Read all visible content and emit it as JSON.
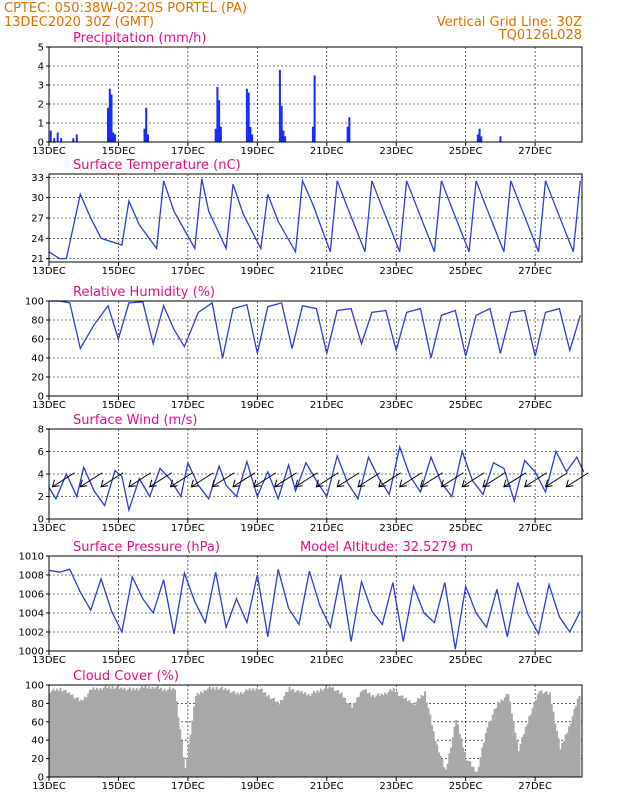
{
  "header": {
    "center_line": "CPTEC:   050:38W-02:20S   PORTEL (PA)",
    "run_line": "13DEC2020 30Z (GMT)",
    "grid_line": "Vertical Grid Line: 30Z",
    "code": "TQ0126L028"
  },
  "colors": {
    "header": "#e07000",
    "title": "#e0108a",
    "line": "#2a3fd8",
    "bar": "#1a2bff",
    "cloud": "#a8a8a8",
    "wind_arrow": "#000000"
  },
  "chart_data": [
    {
      "id": "precip",
      "type": "bar",
      "title": "Precipitation (mm/h)",
      "ylim": [
        0,
        5
      ],
      "yticks": [
        0,
        1,
        2,
        3,
        4,
        5
      ],
      "xlabels": [
        "13DEC",
        "15DEC",
        "17DEC",
        "19DEC",
        "21DEC",
        "23DEC",
        "25DEC",
        "27DEC"
      ],
      "xlabel_days": [
        0,
        2,
        4,
        6,
        8,
        10,
        12,
        14
      ],
      "x_unit": "days since 13DEC2020 30Z",
      "x": [
        0.05,
        0.15,
        0.25,
        0.35,
        0.7,
        0.8,
        1.7,
        1.75,
        1.8,
        1.85,
        1.9,
        2.75,
        2.8,
        2.85,
        4.8,
        4.85,
        4.9,
        4.95,
        5.7,
        5.75,
        5.8,
        5.85,
        6.65,
        6.7,
        6.75,
        6.8,
        7.6,
        7.65,
        8.6,
        8.65,
        12.35,
        12.4,
        12.45,
        13.0
      ],
      "values": [
        0.6,
        0.2,
        0.5,
        0.2,
        0.2,
        0.4,
        1.8,
        2.8,
        2.5,
        0.5,
        0.4,
        0.7,
        1.8,
        0.4,
        0.7,
        2.9,
        2.2,
        0.8,
        2.8,
        2.6,
        0.8,
        0.4,
        3.8,
        1.9,
        0.6,
        0.3,
        0.8,
        3.5,
        0.8,
        1.3,
        0.4,
        0.7,
        0.3,
        0.3
      ]
    },
    {
      "id": "temp",
      "type": "line",
      "title": "Surface Temperature (nC)",
      "ylim": [
        20.5,
        33.5
      ],
      "yticks": [
        21,
        24,
        27,
        30,
        33
      ],
      "xlabels": [
        "13DEC",
        "15DEC",
        "17DEC",
        "19DEC",
        "21DEC",
        "23DEC",
        "25DEC",
        "27DEC"
      ],
      "xlabel_days": [
        0,
        2,
        4,
        6,
        8,
        10,
        12,
        14
      ],
      "x": [
        0,
        0.3,
        0.5,
        0.9,
        1.2,
        1.5,
        2.1,
        2.3,
        2.6,
        3.1,
        3.3,
        3.6,
        4.2,
        4.4,
        4.6,
        5.1,
        5.3,
        5.6,
        6.1,
        6.3,
        6.6,
        7.1,
        7.3,
        7.6,
        8.1,
        8.3,
        8.6,
        9.1,
        9.3,
        9.6,
        10.1,
        10.3,
        10.6,
        11.1,
        11.3,
        11.6,
        12.1,
        12.3,
        12.6,
        13.1,
        13.3,
        13.6,
        14.1,
        14.3,
        14.6,
        15.1,
        15.3
      ],
      "values": [
        22,
        21,
        21,
        30.5,
        27,
        24,
        23,
        29.5,
        26,
        22.5,
        32.5,
        28,
        22.5,
        32.8,
        28,
        22.5,
        32,
        27.5,
        22.5,
        30.5,
        26.5,
        22,
        32.5,
        29,
        22,
        32.5,
        28.5,
        22,
        32.5,
        28.5,
        22,
        32.5,
        28.5,
        22,
        32.5,
        28.5,
        22,
        32.5,
        28.5,
        22,
        32.5,
        28.5,
        22,
        32.5,
        28.5,
        22,
        32.5
      ]
    },
    {
      "id": "rh",
      "type": "line",
      "title": "Relative Humidity (%)",
      "ylim": [
        0,
        100
      ],
      "yticks": [
        0,
        20,
        40,
        60,
        80,
        100
      ],
      "xlabels": [
        "13DEC",
        "15DEC",
        "17DEC",
        "19DEC",
        "21DEC",
        "23DEC",
        "25DEC",
        "27DEC"
      ],
      "xlabel_days": [
        0,
        2,
        4,
        6,
        8,
        10,
        12,
        14
      ],
      "x": [
        0,
        0.3,
        0.6,
        0.9,
        1.3,
        1.7,
        2.0,
        2.3,
        2.7,
        3.0,
        3.3,
        3.6,
        3.9,
        4.3,
        4.7,
        5.0,
        5.3,
        5.7,
        6.0,
        6.3,
        6.7,
        7.0,
        7.3,
        7.7,
        8.0,
        8.3,
        8.7,
        9.0,
        9.3,
        9.7,
        10.0,
        10.3,
        10.7,
        11.0,
        11.3,
        11.7,
        12.0,
        12.3,
        12.7,
        13.0,
        13.3,
        13.7,
        14.0,
        14.3,
        14.7,
        15.0,
        15.3
      ],
      "values": [
        100,
        100,
        98,
        50,
        75,
        95,
        60,
        98,
        99,
        55,
        95,
        70,
        52,
        88,
        98,
        40,
        92,
        96,
        45,
        94,
        98,
        50,
        95,
        92,
        45,
        90,
        92,
        55,
        88,
        90,
        48,
        88,
        92,
        40,
        85,
        90,
        42,
        85,
        92,
        45,
        88,
        90,
        42,
        88,
        92,
        48,
        85
      ]
    },
    {
      "id": "wind",
      "type": "line",
      "title": "Surface Wind (m/s)",
      "ylim": [
        0,
        8
      ],
      "yticks": [
        0,
        2,
        4,
        6,
        8
      ],
      "xlabels": [
        "13DEC",
        "15DEC",
        "17DEC",
        "19DEC",
        "21DEC",
        "23DEC",
        "25DEC",
        "27DEC"
      ],
      "xlabel_days": [
        0,
        2,
        4,
        6,
        8,
        10,
        12,
        14
      ],
      "x": [
        0,
        0.2,
        0.5,
        0.8,
        1.0,
        1.3,
        1.6,
        1.9,
        2.1,
        2.3,
        2.6,
        2.9,
        3.2,
        3.5,
        3.8,
        4.0,
        4.3,
        4.6,
        4.9,
        5.1,
        5.4,
        5.7,
        6.0,
        6.3,
        6.6,
        6.9,
        7.1,
        7.4,
        7.7,
        8.0,
        8.3,
        8.6,
        8.9,
        9.2,
        9.5,
        9.8,
        10.1,
        10.4,
        10.7,
        11.0,
        11.3,
        11.6,
        11.9,
        12.2,
        12.5,
        12.8,
        13.1,
        13.4,
        13.7,
        14.0,
        14.3,
        14.6,
        14.9,
        15.2,
        15.4
      ],
      "values": [
        2.8,
        1.8,
        4.0,
        2.0,
        4.6,
        2.5,
        1.2,
        4.3,
        3.8,
        0.8,
        3.6,
        2.0,
        4.5,
        3.5,
        2.0,
        5.0,
        3.0,
        1.8,
        4.7,
        3.0,
        2.0,
        5.1,
        2.0,
        4.2,
        1.8,
        4.8,
        2.5,
        5.0,
        3.4,
        2.0,
        5.6,
        3.2,
        1.8,
        5.5,
        3.6,
        2.2,
        6.4,
        3.8,
        2.4,
        5.5,
        3.2,
        2.0,
        6.0,
        3.4,
        2.2,
        5.0,
        4.5,
        1.6,
        5.2,
        4.2,
        2.4,
        6.0,
        4.2,
        5.5,
        4.2
      ],
      "arrows_x": [
        0.1,
        0.9,
        1.5,
        2.3,
        2.9,
        3.5,
        4.1,
        4.7,
        5.3,
        5.9,
        6.5,
        7.1,
        7.7,
        8.3,
        8.9,
        9.5,
        10.1,
        10.7,
        11.3,
        11.9,
        12.5,
        13.1,
        13.7,
        14.3,
        14.9
      ]
    },
    {
      "id": "pres",
      "type": "line",
      "title": "Surface Pressure (hPa)",
      "subtitle": "Model Altitude: 32.5279 m",
      "ylim": [
        1000,
        1010
      ],
      "yticks": [
        1000,
        1002,
        1004,
        1006,
        1008,
        1010
      ],
      "xlabels": [
        "13DEC",
        "15DEC",
        "17DEC",
        "19DEC",
        "21DEC",
        "23DEC",
        "25DEC",
        "27DEC"
      ],
      "xlabel_days": [
        0,
        2,
        4,
        6,
        8,
        10,
        12,
        14
      ],
      "x": [
        0,
        0.3,
        0.6,
        0.9,
        1.2,
        1.5,
        1.8,
        2.1,
        2.4,
        2.7,
        3.0,
        3.3,
        3.6,
        3.9,
        4.2,
        4.5,
        4.8,
        5.1,
        5.4,
        5.7,
        6.0,
        6.3,
        6.6,
        6.9,
        7.2,
        7.5,
        7.8,
        8.1,
        8.4,
        8.7,
        9.0,
        9.3,
        9.6,
        9.9,
        10.2,
        10.5,
        10.8,
        11.1,
        11.4,
        11.7,
        12.0,
        12.3,
        12.6,
        12.9,
        13.2,
        13.5,
        13.8,
        14.1,
        14.4,
        14.7,
        15.0,
        15.3
      ],
      "values": [
        1008.5,
        1008.3,
        1008.6,
        1006.2,
        1004.3,
        1007.6,
        1004.2,
        1002.0,
        1007.8,
        1005.5,
        1004.0,
        1007.5,
        1001.8,
        1008.2,
        1005.2,
        1003.0,
        1008.3,
        1002.5,
        1005.5,
        1003.0,
        1008.0,
        1001.5,
        1008.6,
        1004.5,
        1002.8,
        1008.4,
        1004.8,
        1002.5,
        1008.0,
        1001.0,
        1007.3,
        1004.2,
        1002.8,
        1007.2,
        1001.0,
        1006.8,
        1004.0,
        1003.0,
        1007.2,
        1000.2,
        1006.8,
        1004.0,
        1002.5,
        1006.5,
        1001.5,
        1007.2,
        1003.8,
        1001.8,
        1007.0,
        1003.6,
        1002.0,
        1004.2
      ]
    },
    {
      "id": "cloud",
      "type": "area",
      "title": "Cloud Cover (%)",
      "ylim": [
        0,
        100
      ],
      "yticks": [
        0,
        20,
        40,
        60,
        80,
        100
      ],
      "xlabels": [
        "13DEC",
        "15DEC",
        "17DEC",
        "19DEC",
        "21DEC",
        "23DEC",
        "25DEC",
        "27DEC"
      ],
      "xlabel_days": [
        0,
        2,
        4,
        6,
        8,
        10,
        12,
        14
      ],
      "x": [
        0,
        0.3,
        0.6,
        0.9,
        1.2,
        1.5,
        1.8,
        2.1,
        2.4,
        2.7,
        3.0,
        3.3,
        3.6,
        3.9,
        4.2,
        4.5,
        4.8,
        5.1,
        5.4,
        5.7,
        6.0,
        6.3,
        6.6,
        6.9,
        7.2,
        7.5,
        7.8,
        8.1,
        8.4,
        8.7,
        9.0,
        9.3,
        9.6,
        9.9,
        10.2,
        10.5,
        10.8,
        11.1,
        11.4,
        11.7,
        12.0,
        12.3,
        12.6,
        12.9,
        13.2,
        13.5,
        13.8,
        14.1,
        14.4,
        14.7,
        15.0,
        15.3
      ],
      "values": [
        93,
        96,
        90,
        82,
        95,
        97,
        98,
        96,
        95,
        97,
        98,
        95,
        96,
        8,
        88,
        96,
        97,
        95,
        90,
        94,
        97,
        88,
        80,
        96,
        92,
        90,
        95,
        98,
        90,
        75,
        96,
        88,
        90,
        95,
        85,
        80,
        92,
        40,
        6,
        62,
        20,
        5,
        55,
        80,
        90,
        30,
        65,
        94,
        90,
        30,
        60,
        96
      ]
    }
  ]
}
